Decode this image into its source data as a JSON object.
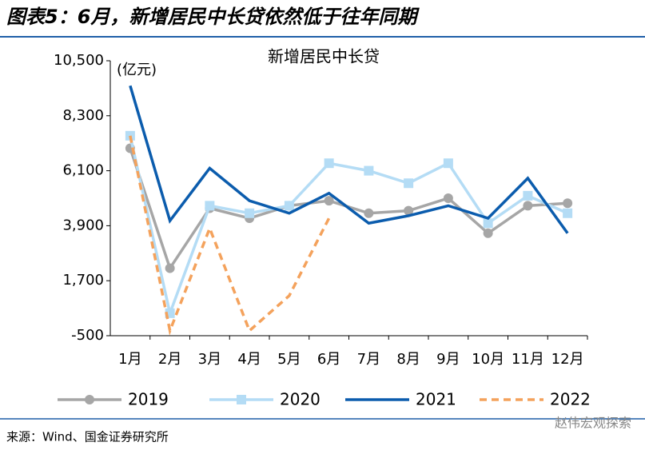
{
  "page_title": "图表5：6月，新增居民中长贷依然低于往年同期",
  "source": "来源：Wind、国金证券研究所",
  "watermark": "赵伟宏观探索",
  "chart_data": {
    "type": "line",
    "title": "新增居民中长贷",
    "unit_label": "(亿元)",
    "categories": [
      "1月",
      "2月",
      "3月",
      "4月",
      "5月",
      "6月",
      "7月",
      "8月",
      "9月",
      "10月",
      "11月",
      "12月"
    ],
    "ylim": [
      -500,
      10500
    ],
    "yticks": [
      -500,
      {
        "value": 1700,
        "label": "1,700"
      },
      {
        "value": 3900,
        "label": "3,900"
      },
      {
        "value": 6100,
        "label": "6,100"
      },
      {
        "value": 8300,
        "label": "8,300"
      },
      {
        "value": 10500,
        "label": "10,500"
      }
    ],
    "grid": false,
    "legend": "bottom",
    "series": [
      {
        "name": "2019",
        "color": "#a6a6a6",
        "marker": "circle",
        "dashed": false,
        "values": [
          7000,
          2200,
          4600,
          4200,
          4700,
          4900,
          4400,
          4500,
          5000,
          3600,
          4700,
          4800
        ]
      },
      {
        "name": "2020",
        "color": "#b4dcf5",
        "marker": "square",
        "dashed": false,
        "values": [
          7500,
          400,
          4700,
          4400,
          4700,
          6400,
          6100,
          5600,
          6400,
          4000,
          5100,
          4400
        ]
      },
      {
        "name": "2021",
        "color": "#0b5cad",
        "marker": "none",
        "dashed": false,
        "values": [
          9500,
          4100,
          6200,
          4900,
          4400,
          5200,
          4000,
          4300,
          4700,
          4200,
          5800,
          3600
        ]
      },
      {
        "name": "2022",
        "color": "#f4a25c",
        "marker": "none",
        "dashed": true,
        "values": [
          7500,
          -300,
          3800,
          -300,
          1100,
          4200,
          null,
          null,
          null,
          null,
          null,
          null
        ]
      }
    ]
  }
}
